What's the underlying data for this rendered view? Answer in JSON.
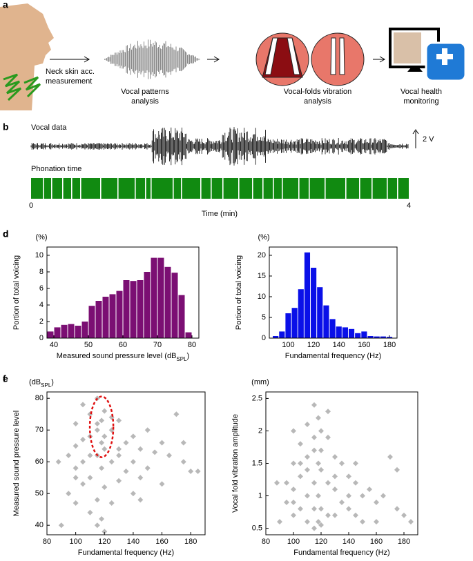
{
  "panel_a": {
    "label": "a",
    "steps": [
      [
        "Neck skin acc.",
        "measurement"
      ],
      [
        "Vocal patterns",
        "analysis"
      ],
      [
        "Vocal-folds vibration",
        "analysis"
      ],
      [
        "Vocal health",
        "monitoring"
      ]
    ]
  },
  "panel_b": {
    "label": "b",
    "vocal_data": "Vocal data",
    "scale": "2 V",
    "phonation_time": "Phonation time",
    "time_start": "0",
    "time_end": "4",
    "time_label": "Time (min)"
  },
  "chart_data": [
    {
      "type": "histogram",
      "panel": "c",
      "y_unit": "(%)",
      "y_label": "Portion of total voicing",
      "x_label": [
        "Measured sound pressure level (dB",
        "SPL",
        ")"
      ],
      "color": "#7b0f73",
      "bins": [
        38,
        40,
        42,
        44,
        46,
        48,
        50,
        52,
        54,
        56,
        58,
        60,
        62,
        64,
        66,
        68,
        70,
        72,
        74,
        76,
        78,
        80
      ],
      "values": [
        0.8,
        1.3,
        1.6,
        1.7,
        1.5,
        2.0,
        3.9,
        4.5,
        5.0,
        5.3,
        5.7,
        7.0,
        6.9,
        7.0,
        8.0,
        9.7,
        9.7,
        8.6,
        7.9,
        5.2,
        0.7
      ],
      "xlim": [
        38,
        82
      ],
      "xticks": [
        40,
        50,
        60,
        70,
        80
      ],
      "ylim": [
        0,
        11
      ],
      "yticks": [
        0,
        2,
        4,
        6,
        8,
        10
      ]
    },
    {
      "type": "histogram",
      "panel": "d",
      "y_unit": "(%)",
      "y_label": "Portion of total voicing",
      "x_label": "Fundamental frequency (Hz)",
      "color": "#0a10e8",
      "bins": [
        87.5,
        92.5,
        97.5,
        102.5,
        107.5,
        112.5,
        117.5,
        122.5,
        127.5,
        132.5,
        137.5,
        142.5,
        147.5,
        152.5,
        157.5,
        162.5,
        167.5,
        172.5,
        177.5,
        182.5
      ],
      "values": [
        0.5,
        1.6,
        6.0,
        7.3,
        11.8,
        20.7,
        17.0,
        12.3,
        7.9,
        4.6,
        2.8,
        2.6,
        2.2,
        1.2,
        1.6,
        0.5,
        0.4,
        0.4,
        0.3
      ],
      "xlim": [
        85,
        186
      ],
      "xticks": [
        100,
        120,
        140,
        160,
        180
      ],
      "ylim": [
        0,
        22
      ],
      "yticks": [
        0,
        5,
        10,
        15,
        20
      ]
    },
    {
      "type": "scatter",
      "panel": "e",
      "y_unit": [
        "(dB",
        "SPL",
        ")"
      ],
      "y_label": "Measured sound pressure level",
      "x_label": "Fundamental frequency (Hz)",
      "color": "#333333",
      "opacity": 0.35,
      "x": [
        90,
        95,
        95,
        100,
        100,
        100,
        100,
        105,
        105,
        105,
        110,
        110,
        110,
        110,
        115,
        115,
        115,
        115,
        115,
        118,
        118,
        118,
        118,
        120,
        120,
        120,
        125,
        125,
        125,
        130,
        130,
        130,
        135,
        135,
        140,
        140,
        145,
        145,
        150,
        150,
        155,
        160,
        160,
        165,
        170,
        175,
        180,
        185,
        100,
        110,
        120,
        130,
        115,
        120,
        105,
        140,
        88,
        175,
        145,
        125
      ],
      "y": [
        40,
        62,
        50,
        72,
        58,
        65,
        47,
        78,
        60,
        53,
        68,
        55,
        75,
        44,
        80,
        70,
        62,
        48,
        40,
        73,
        66,
        58,
        42,
        76,
        64,
        52,
        70,
        60,
        47,
        73,
        62,
        54,
        66,
        57,
        68,
        60,
        64,
        55,
        70,
        58,
        63,
        66,
        53,
        62,
        75,
        60,
        57,
        57,
        55,
        62,
        68,
        64,
        72,
        38,
        67,
        50,
        60,
        66,
        48,
        74
      ],
      "xlim": [
        80,
        190
      ],
      "xticks": [
        80,
        100,
        120,
        140,
        160,
        180
      ],
      "ylim": [
        37,
        82
      ],
      "yticks": [
        40,
        50,
        60,
        70,
        80
      ]
    },
    {
      "type": "scatter",
      "panel": "f",
      "y_unit": "(mm)",
      "y_label": "Vocal fold vibration amplitude",
      "x_label": "Fundamental frequency (Hz)",
      "color": "#333333",
      "opacity": 0.35,
      "x": [
        90,
        95,
        95,
        100,
        100,
        100,
        100,
        105,
        105,
        105,
        110,
        110,
        110,
        110,
        115,
        115,
        115,
        115,
        115,
        118,
        118,
        118,
        118,
        120,
        120,
        120,
        125,
        125,
        125,
        130,
        130,
        130,
        135,
        135,
        140,
        140,
        145,
        145,
        150,
        150,
        155,
        160,
        160,
        165,
        170,
        175,
        180,
        185,
        100,
        110,
        120,
        130,
        115,
        120,
        105,
        140,
        88,
        175,
        145,
        125
      ],
      "y": [
        0.6,
        1.2,
        0.9,
        2.0,
        1.1,
        1.5,
        0.7,
        1.3,
        0.8,
        1.8,
        2.1,
        1.0,
        1.6,
        0.6,
        2.4,
        1.7,
        1.2,
        0.8,
        0.5,
        2.2,
        1.5,
        1.0,
        0.6,
        2.0,
        1.4,
        0.8,
        1.9,
        1.2,
        0.7,
        1.6,
        1.1,
        0.7,
        1.5,
        0.9,
        1.3,
        0.8,
        1.2,
        0.7,
        1.0,
        0.6,
        1.1,
        0.9,
        0.6,
        1.0,
        1.6,
        0.8,
        0.7,
        0.6,
        0.9,
        1.4,
        1.7,
        1.3,
        1.9,
        0.55,
        1.5,
        1.0,
        1.2,
        1.4,
        1.5,
        2.3
      ],
      "xlim": [
        80,
        190
      ],
      "xticks": [
        80,
        100,
        120,
        140,
        160,
        180
      ],
      "ylim": [
        0.4,
        2.6
      ],
      "yticks": [
        0.5,
        1,
        1.5,
        2,
        2.5
      ]
    }
  ]
}
